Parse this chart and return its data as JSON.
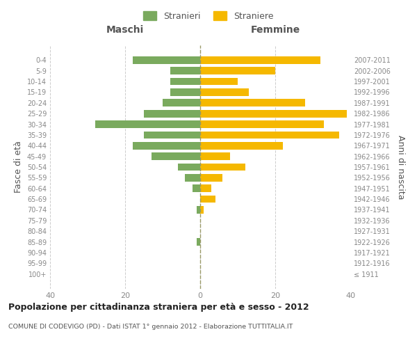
{
  "age_groups": [
    "100+",
    "95-99",
    "90-94",
    "85-89",
    "80-84",
    "75-79",
    "70-74",
    "65-69",
    "60-64",
    "55-59",
    "50-54",
    "45-49",
    "40-44",
    "35-39",
    "30-34",
    "25-29",
    "20-24",
    "15-19",
    "10-14",
    "5-9",
    "0-4"
  ],
  "birth_years": [
    "≤ 1911",
    "1912-1916",
    "1917-1921",
    "1922-1926",
    "1927-1931",
    "1932-1936",
    "1937-1941",
    "1942-1946",
    "1947-1951",
    "1952-1956",
    "1957-1961",
    "1962-1966",
    "1967-1971",
    "1972-1976",
    "1977-1981",
    "1982-1986",
    "1987-1991",
    "1992-1996",
    "1997-2001",
    "2002-2006",
    "2007-2011"
  ],
  "maschi": [
    0,
    0,
    0,
    1,
    0,
    0,
    1,
    0,
    2,
    4,
    6,
    13,
    18,
    15,
    28,
    15,
    10,
    8,
    8,
    8,
    18
  ],
  "femmine": [
    0,
    0,
    0,
    0,
    0,
    0,
    1,
    4,
    3,
    6,
    12,
    8,
    22,
    37,
    33,
    39,
    28,
    13,
    10,
    20,
    32
  ],
  "male_color": "#7aaa5e",
  "female_color": "#f5b800",
  "title": "Popolazione per cittadinanza straniera per età e sesso - 2012",
  "subtitle": "COMUNE DI CODEVIGO (PD) - Dati ISTAT 1° gennaio 2012 - Elaborazione TUTTITALIA.IT",
  "ylabel_left": "Fasce di età",
  "ylabel_right": "Anni di nascita",
  "legend_male": "Stranieri",
  "legend_female": "Straniere",
  "header_left": "Maschi",
  "header_right": "Femmine",
  "xlim": 40,
  "background_color": "#ffffff",
  "grid_color": "#cccccc",
  "axis_label_color": "#555555",
  "tick_color": "#888888"
}
